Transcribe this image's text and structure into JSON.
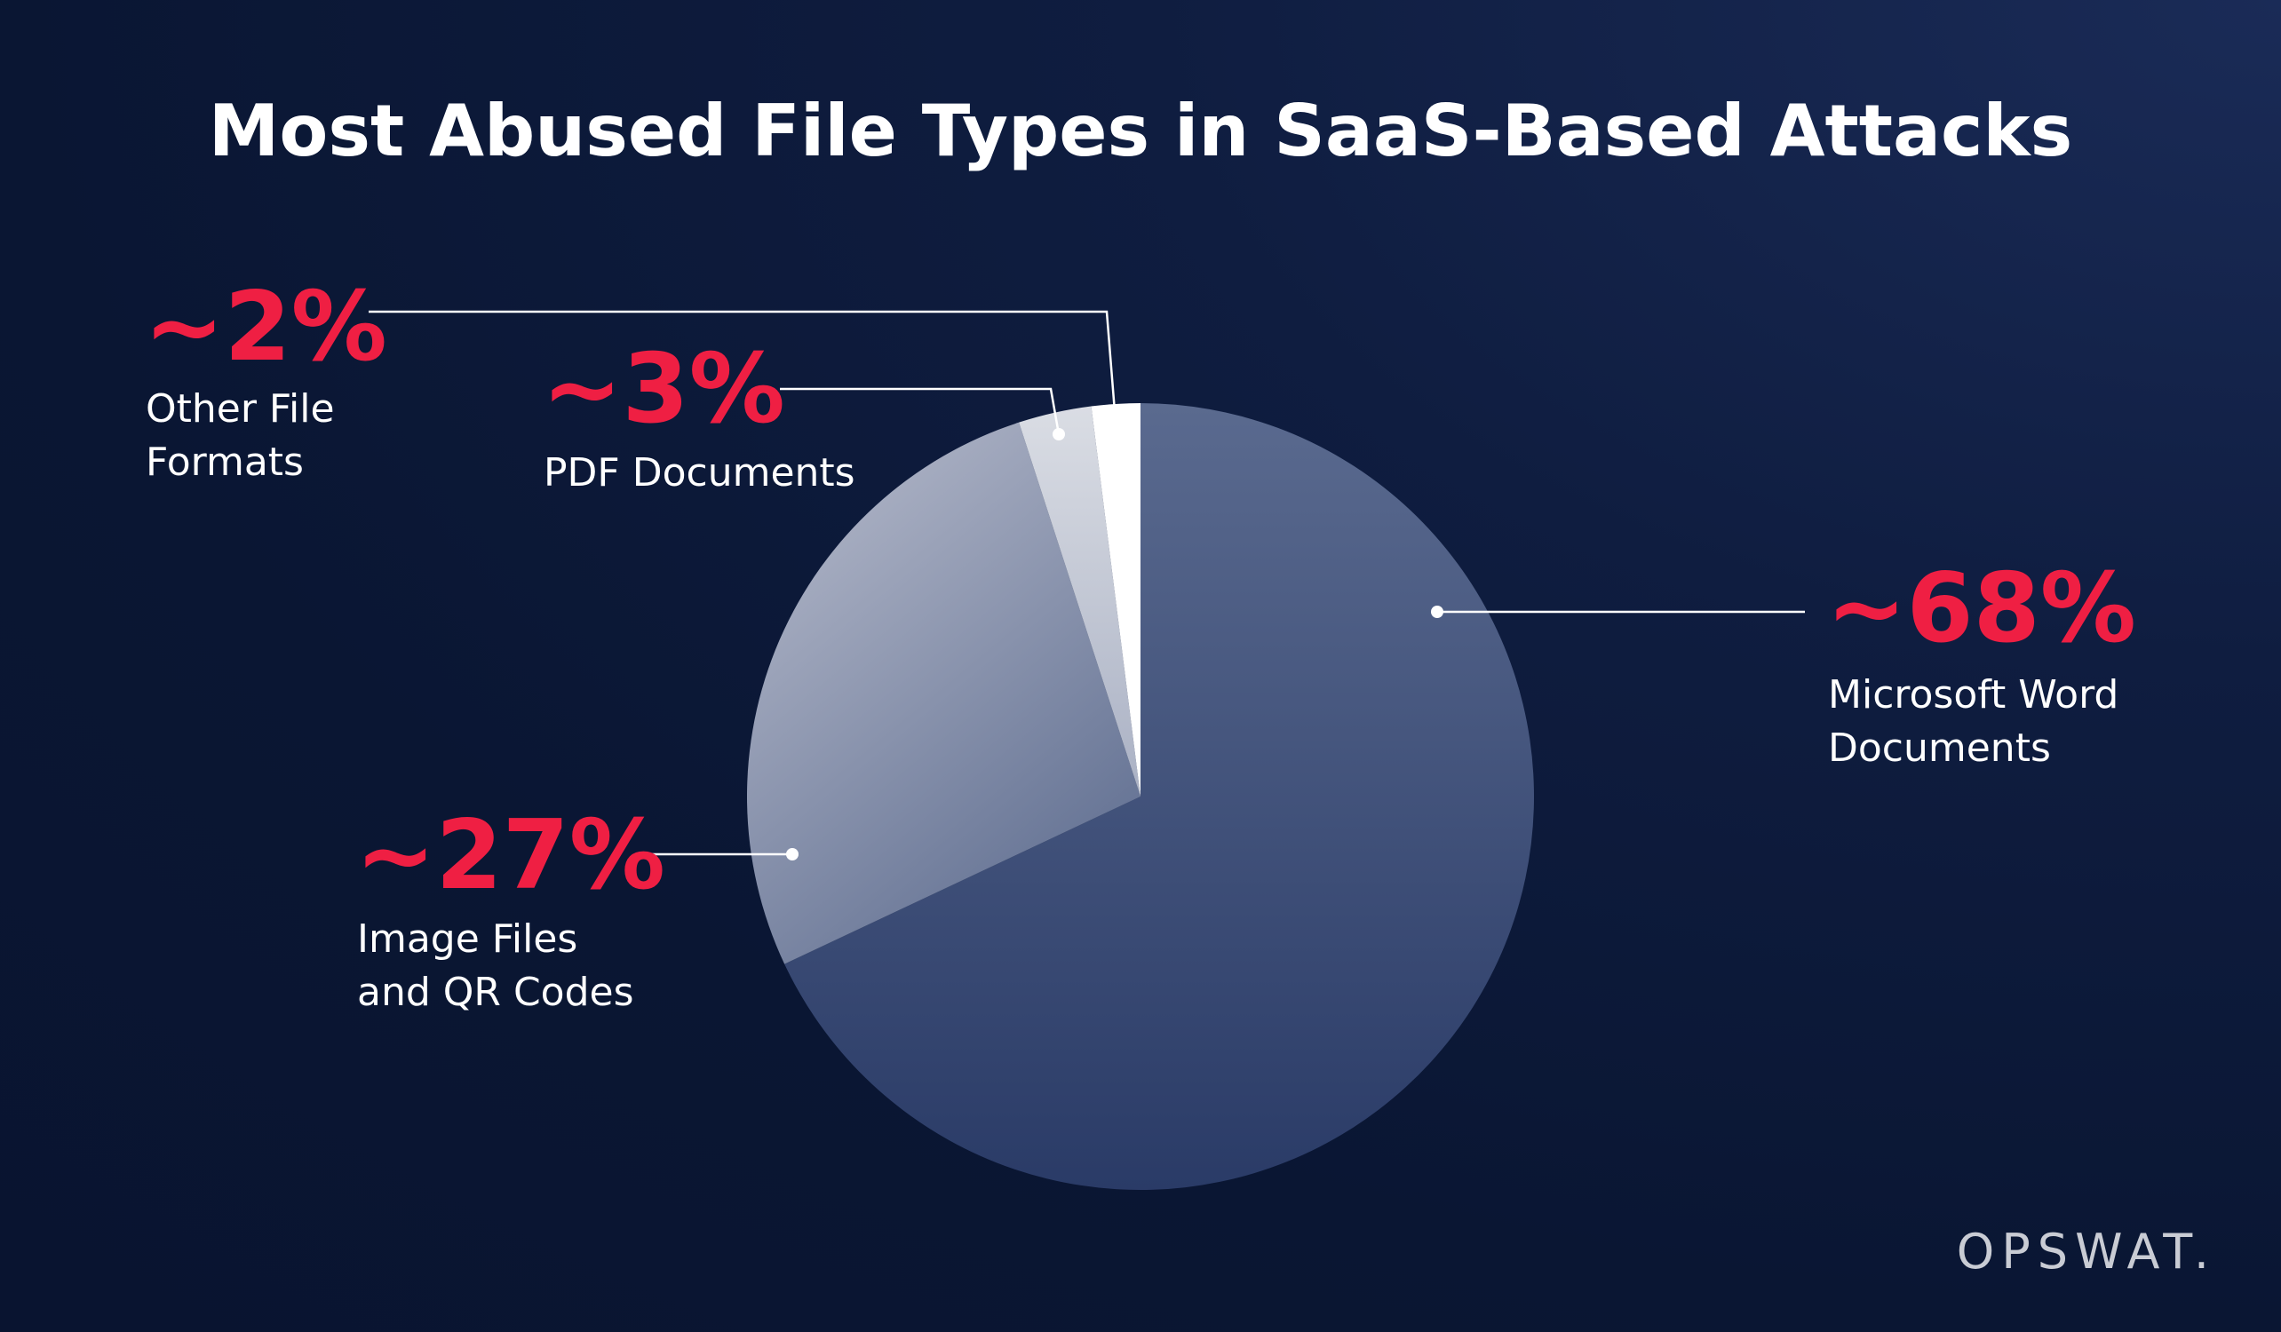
{
  "chart_data": {
    "type": "pie",
    "title": "Most Abused File Types in SaaS-Based Attacks",
    "slices": [
      {
        "label_value": "~68%",
        "label_line1": "Microsoft Word",
        "label_line2": "Documents",
        "value": 68,
        "color": "#3a4c74"
      },
      {
        "label_value": "~27%",
        "label_line1": "Image Files",
        "label_line2": "and QR Codes",
        "value": 27,
        "color": "#8992ab"
      },
      {
        "label_value": "~3%",
        "label_line1": "PDF Documents",
        "label_line2": "",
        "value": 3,
        "color": "#d3d6de"
      },
      {
        "label_value": "~2%",
        "label_line1": "Other File",
        "label_line2": "Formats",
        "value": 2,
        "color": "#ffffff"
      }
    ]
  },
  "brand": {
    "logo_text": "OPSWAT."
  },
  "colors": {
    "accent": "#ef1f43",
    "background": "#0c1a3a"
  }
}
